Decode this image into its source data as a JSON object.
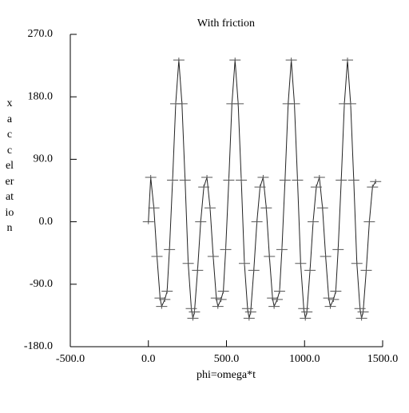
{
  "chart_data": {
    "type": "line",
    "title": "With friction",
    "x_label": "phi=omega*t",
    "y_label": "x acceleration",
    "marker": "+",
    "color": "#222222",
    "xlim": [
      -500,
      1500
    ],
    "xticks": [
      {
        "value": -500,
        "label": "-500.0"
      },
      {
        "value": 0,
        "label": "0.0"
      },
      {
        "value": 500,
        "label": "500.0"
      },
      {
        "value": 1000,
        "label": "1000.0"
      },
      {
        "value": 1500,
        "label": "1500.0"
      }
    ],
    "ylim": [
      -180,
      270
    ],
    "yticks": [
      {
        "value": -180,
        "label": "-180.0"
      },
      {
        "value": -90,
        "label": "-90.0"
      },
      {
        "value": 0,
        "label": "0.0"
      },
      {
        "value": 90,
        "label": "90.0"
      },
      {
        "value": 180,
        "label": "180.0"
      },
      {
        "value": 270,
        "label": "270.0"
      }
    ],
    "x": [
      0,
      15,
      35,
      55,
      75,
      85,
      105,
      120,
      135,
      155,
      175,
      195,
      215,
      235,
      255,
      275,
      285,
      295,
      315,
      335,
      355,
      375,
      395,
      415,
      435,
      445,
      465,
      480,
      495,
      515,
      535,
      555,
      575,
      595,
      615,
      635,
      645,
      655,
      675,
      695,
      715,
      735,
      755,
      775,
      795,
      805,
      825,
      840,
      855,
      875,
      895,
      915,
      935,
      955,
      975,
      995,
      1005,
      1015,
      1035,
      1055,
      1075,
      1095,
      1115,
      1135,
      1155,
      1165,
      1185,
      1200,
      1215,
      1235,
      1255,
      1275,
      1295,
      1315,
      1335,
      1355,
      1365,
      1375,
      1395,
      1415,
      1435,
      1455
    ],
    "values": [
      0,
      64,
      20,
      -50,
      -110,
      -122,
      -112,
      -100,
      -40,
      60,
      170,
      233,
      170,
      60,
      -60,
      -125,
      -139,
      -130,
      -70,
      0,
      50,
      64,
      20,
      -50,
      -110,
      -122,
      -112,
      -100,
      -40,
      60,
      170,
      233,
      170,
      60,
      -60,
      -125,
      -139,
      -130,
      -70,
      0,
      50,
      64,
      20,
      -50,
      -110,
      -122,
      -112,
      -100,
      -40,
      60,
      170,
      233,
      170,
      60,
      -60,
      -125,
      -139,
      -130,
      -70,
      0,
      50,
      64,
      20,
      -50,
      -110,
      -122,
      -112,
      -100,
      -40,
      60,
      170,
      233,
      170,
      60,
      -60,
      -125,
      -139,
      -130,
      -70,
      0,
      50,
      58
    ]
  }
}
